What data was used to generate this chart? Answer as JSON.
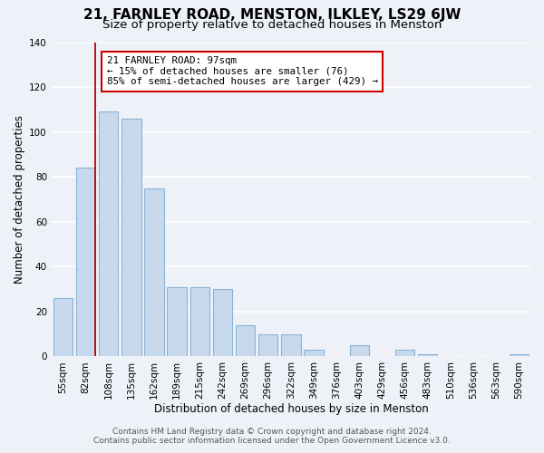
{
  "title": "21, FARNLEY ROAD, MENSTON, ILKLEY, LS29 6JW",
  "subtitle": "Size of property relative to detached houses in Menston",
  "xlabel": "Distribution of detached houses by size in Menston",
  "ylabel": "Number of detached properties",
  "bar_color": "#c8d9ee",
  "bar_edge_color": "#8ab4d4",
  "bins": [
    "55sqm",
    "82sqm",
    "108sqm",
    "135sqm",
    "162sqm",
    "189sqm",
    "215sqm",
    "242sqm",
    "269sqm",
    "296sqm",
    "322sqm",
    "349sqm",
    "376sqm",
    "403sqm",
    "429sqm",
    "456sqm",
    "483sqm",
    "510sqm",
    "536sqm",
    "563sqm",
    "590sqm"
  ],
  "values": [
    26,
    84,
    109,
    106,
    75,
    31,
    31,
    30,
    14,
    10,
    10,
    3,
    0,
    5,
    0,
    3,
    1,
    0,
    0,
    0,
    1
  ],
  "property_bin_index": 1,
  "highlight_line_color": "#bb0000",
  "annotation_title": "21 FARNLEY ROAD: 97sqm",
  "annotation_line1": "← 15% of detached houses are smaller (76)",
  "annotation_line2": "85% of semi-detached houses are larger (429) →",
  "annotation_box_color": "#ffffff",
  "annotation_box_edge_color": "#cc0000",
  "ylim": [
    0,
    140
  ],
  "yticks": [
    0,
    20,
    40,
    60,
    80,
    100,
    120,
    140
  ],
  "footer1": "Contains HM Land Registry data © Crown copyright and database right 2024.",
  "footer2": "Contains public sector information licensed under the Open Government Licence v3.0.",
  "background_color": "#eef2f8",
  "grid_color": "#ffffff",
  "title_fontsize": 11,
  "subtitle_fontsize": 9.5,
  "axis_label_fontsize": 8.5,
  "tick_fontsize": 7.5,
  "annotation_fontsize": 7.8,
  "footer_fontsize": 6.5
}
